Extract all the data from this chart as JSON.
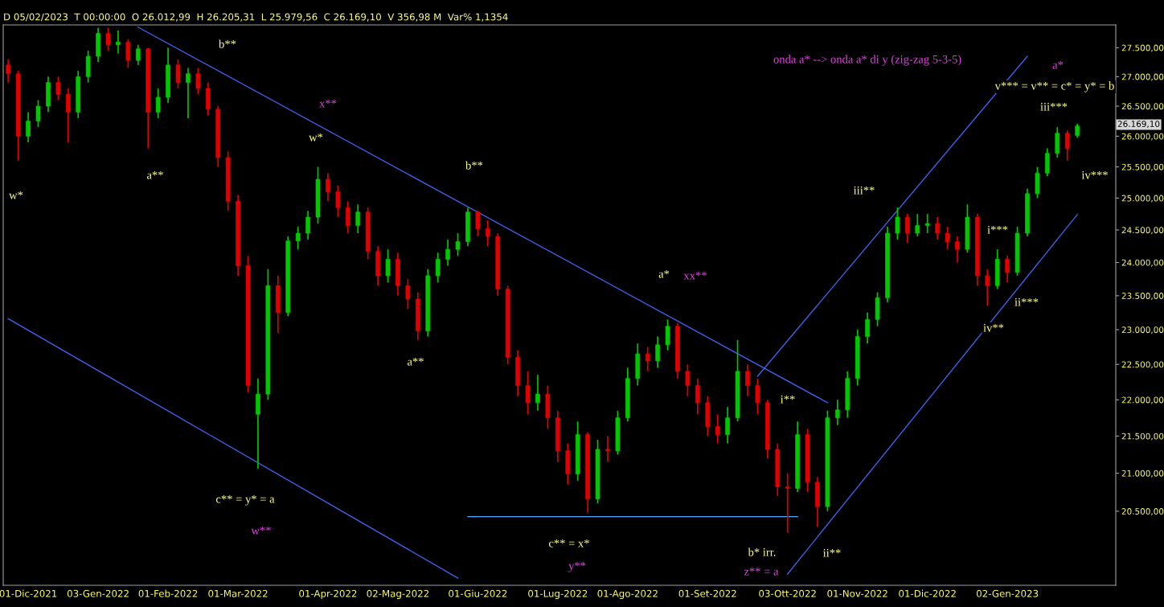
{
  "chart_data": {
    "type": "candlestick",
    "categories": [
      null,
      null,
      "01-Dic-2021",
      null,
      null,
      null,
      null,
      null,
      null,
      "03-Gen-2022",
      null,
      null,
      null,
      null,
      null,
      null,
      "01-Feb-2022",
      null,
      null,
      null,
      null,
      null,
      null,
      "01-Mar-2022",
      null,
      null,
      null,
      null,
      null,
      null,
      null,
      null,
      "01-Apr-2022",
      null,
      null,
      null,
      null,
      null,
      null,
      "02-Mag-2022",
      null,
      null,
      null,
      null,
      null,
      null,
      null,
      "01-Giu-2022",
      null,
      null,
      null,
      null,
      null,
      null,
      null,
      "01-Lug-2022",
      null,
      null,
      null,
      null,
      null,
      null,
      "01-Ago-2022",
      null,
      null,
      null,
      null,
      null,
      null,
      null,
      "01-Set-2022",
      null,
      null,
      null,
      null,
      null,
      null,
      null,
      "03-Ott-2022",
      null,
      null,
      null,
      null,
      null,
      null,
      "01-Nov-2022",
      null,
      null,
      null,
      null,
      null,
      null,
      "01-Dic-2022",
      null,
      null,
      null,
      null,
      null,
      null,
      null,
      "02-Gen-2023",
      null,
      null,
      null,
      null,
      null,
      null,
      null
    ],
    "ohlc": [
      [
        27200,
        27300,
        26900,
        27050
      ],
      [
        27050,
        27100,
        25600,
        26000
      ],
      [
        26000,
        26400,
        25900,
        26250
      ],
      [
        26250,
        26600,
        26150,
        26500
      ],
      [
        26500,
        27000,
        26400,
        26900
      ],
      [
        26900,
        27000,
        26600,
        26700
      ],
      [
        26700,
        26800,
        25900,
        26400
      ],
      [
        26400,
        27100,
        26300,
        27000
      ],
      [
        27000,
        27450,
        26900,
        27350
      ],
      [
        27350,
        27850,
        27250,
        27750
      ],
      [
        27750,
        27850,
        27450,
        27550
      ],
      [
        27550,
        27800,
        27400,
        27600
      ],
      [
        27600,
        27650,
        27150,
        27280
      ],
      [
        27280,
        27550,
        27200,
        27480
      ],
      [
        27480,
        27500,
        25800,
        26400
      ],
      [
        26400,
        26800,
        26300,
        26650
      ],
      [
        26650,
        27500,
        26550,
        27200
      ],
      [
        27200,
        27300,
        26800,
        26900
      ],
      [
        26900,
        27150,
        26300,
        27050
      ],
      [
        27050,
        27150,
        26700,
        26800
      ],
      [
        26800,
        26900,
        26350,
        26450
      ],
      [
        26450,
        26500,
        25500,
        25650
      ],
      [
        25650,
        25750,
        24800,
        24950
      ],
      [
        24950,
        25050,
        23800,
        23950
      ],
      [
        23950,
        24100,
        22100,
        22200
      ],
      [
        21800,
        22300,
        21060,
        22080
      ],
      [
        22080,
        23900,
        22000,
        23650
      ],
      [
        23650,
        23800,
        22950,
        23250
      ],
      [
        23250,
        24400,
        23200,
        24330
      ],
      [
        24330,
        24550,
        24200,
        24450
      ],
      [
        24450,
        24800,
        24350,
        24700
      ],
      [
        24700,
        25500,
        24600,
        25300
      ],
      [
        25300,
        25400,
        24950,
        25100
      ],
      [
        25100,
        25200,
        24700,
        24850
      ],
      [
        24850,
        24950,
        24450,
        24570
      ],
      [
        24570,
        24900,
        24450,
        24780
      ],
      [
        24780,
        24850,
        24050,
        24170
      ],
      [
        24170,
        24250,
        23650,
        23800
      ],
      [
        23800,
        24200,
        23700,
        24050
      ],
      [
        24050,
        24150,
        23500,
        23650
      ],
      [
        23650,
        23750,
        23300,
        23450
      ],
      [
        23450,
        23550,
        22850,
        22980
      ],
      [
        22980,
        23900,
        22900,
        23800
      ],
      [
        23800,
        24150,
        23700,
        24050
      ],
      [
        24050,
        24350,
        23950,
        24200
      ],
      [
        24200,
        24450,
        24100,
        24320
      ],
      [
        24320,
        24850,
        24250,
        24780
      ],
      [
        24780,
        24800,
        24400,
        24520
      ],
      [
        24520,
        24650,
        24250,
        24400
      ],
      [
        24400,
        24450,
        23500,
        23600
      ],
      [
        23600,
        23650,
        22500,
        22600
      ],
      [
        22600,
        22700,
        22050,
        22200
      ],
      [
        22200,
        22400,
        21800,
        21960
      ],
      [
        21960,
        22350,
        21850,
        22080
      ],
      [
        22080,
        22200,
        21600,
        21750
      ],
      [
        21750,
        21850,
        21150,
        21300
      ],
      [
        21300,
        21400,
        20850,
        20990
      ],
      [
        20990,
        21700,
        20900,
        21520
      ],
      [
        21520,
        21550,
        20480,
        20660
      ],
      [
        20660,
        21450,
        20600,
        21320
      ],
      [
        21320,
        21500,
        21150,
        21300
      ],
      [
        21300,
        21850,
        21250,
        21750
      ],
      [
        21750,
        22450,
        21700,
        22300
      ],
      [
        22300,
        22800,
        22200,
        22650
      ],
      [
        22650,
        22750,
        22400,
        22550
      ],
      [
        22550,
        22900,
        22450,
        22780
      ],
      [
        22780,
        23150,
        22700,
        23050
      ],
      [
        23050,
        23100,
        22300,
        22400
      ],
      [
        22400,
        22500,
        22050,
        22200
      ],
      [
        22200,
        22300,
        21800,
        21960
      ],
      [
        21960,
        22050,
        21500,
        21630
      ],
      [
        21630,
        21800,
        21400,
        21520
      ],
      [
        21520,
        21900,
        21400,
        21750
      ],
      [
        21750,
        22850,
        21700,
        22400
      ],
      [
        22400,
        22500,
        22050,
        22200
      ],
      [
        22200,
        22300,
        21800,
        21960
      ],
      [
        21960,
        22000,
        21200,
        21320
      ],
      [
        21320,
        21400,
        20700,
        20820
      ],
      [
        20820,
        21000,
        20220,
        20800
      ],
      [
        20800,
        21700,
        20750,
        21520
      ],
      [
        21520,
        21600,
        20750,
        20880
      ],
      [
        20880,
        20950,
        20300,
        20560
      ],
      [
        20560,
        21850,
        20500,
        21750
      ],
      [
        21750,
        22000,
        21650,
        21860
      ],
      [
        21860,
        22400,
        21750,
        22300
      ],
      [
        22300,
        23000,
        22200,
        22900
      ],
      [
        22900,
        23250,
        22800,
        23150
      ],
      [
        23150,
        23550,
        23050,
        23470
      ],
      [
        23470,
        24550,
        23400,
        24450
      ],
      [
        24450,
        24850,
        24350,
        24700
      ],
      [
        24700,
        24750,
        24300,
        24450
      ],
      [
        24450,
        24750,
        24400,
        24570
      ],
      [
        24570,
        24750,
        24450,
        24600
      ],
      [
        24600,
        24700,
        24350,
        24450
      ],
      [
        24450,
        24550,
        24200,
        24320
      ],
      [
        24320,
        24400,
        24000,
        24200
      ],
      [
        24200,
        24900,
        24150,
        24700
      ],
      [
        24700,
        24750,
        23650,
        23800
      ],
      [
        23800,
        23900,
        23350,
        23650
      ],
      [
        23650,
        24200,
        23600,
        24050
      ],
      [
        24050,
        24100,
        23700,
        23850
      ],
      [
        23850,
        24550,
        23800,
        24450
      ],
      [
        24450,
        25150,
        24400,
        25070
      ],
      [
        25070,
        25500,
        25000,
        25400
      ],
      [
        25400,
        25800,
        25350,
        25720
      ],
      [
        25720,
        26150,
        25650,
        26050
      ],
      [
        26050,
        26100,
        25600,
        25800
      ],
      [
        26012.99,
        26205.31,
        25979.56,
        26169.1
      ]
    ],
    "series": [
      {
        "type": "line",
        "color": "#3f5fe8",
        "values": [
          23160,
          null,
          null,
          null,
          null,
          null,
          null,
          null,
          null,
          null,
          null,
          null,
          null,
          null,
          null,
          null,
          null,
          null,
          null,
          null,
          null,
          null,
          null,
          null,
          null,
          null,
          null,
          null,
          null,
          null,
          null,
          null,
          null,
          null,
          null,
          null,
          null,
          null,
          null,
          null,
          null,
          null,
          null,
          null,
          null,
          19650,
          null,
          null,
          null,
          null,
          null,
          null,
          null,
          null,
          null,
          null,
          null,
          null,
          null,
          null,
          null,
          null,
          null,
          null,
          null,
          null,
          null,
          null,
          null,
          null,
          null,
          null,
          null,
          null,
          null,
          null,
          null,
          null,
          null,
          null,
          null,
          null,
          null,
          null,
          null,
          null,
          null,
          null,
          null,
          null,
          null,
          null,
          null,
          null,
          null,
          null,
          null,
          null,
          null,
          null,
          null,
          null,
          null,
          null,
          null,
          null,
          null,
          null
        ]
      },
      {
        "type": "line",
        "color": "#3f5fe8",
        "values": [
          null,
          null,
          null,
          null,
          null,
          null,
          null,
          null,
          null,
          null,
          null,
          null,
          null,
          27860,
          null,
          null,
          null,
          null,
          null,
          null,
          null,
          null,
          null,
          null,
          null,
          null,
          null,
          null,
          null,
          null,
          null,
          null,
          null,
          null,
          null,
          null,
          null,
          null,
          null,
          null,
          null,
          null,
          null,
          null,
          null,
          null,
          null,
          null,
          null,
          null,
          null,
          null,
          null,
          null,
          null,
          null,
          null,
          null,
          null,
          null,
          null,
          null,
          null,
          null,
          null,
          null,
          null,
          null,
          null,
          null,
          null,
          null,
          null,
          null,
          null,
          null,
          null,
          null,
          null,
          null,
          null,
          null,
          21960,
          null,
          null,
          null,
          null,
          null,
          null,
          null,
          null,
          null,
          null,
          null,
          null,
          null,
          null,
          null,
          null,
          null,
          null,
          null,
          null,
          null,
          null,
          null,
          null,
          null
        ]
      },
      {
        "type": "line",
        "color": "#3f5fe8",
        "values": [
          null,
          null,
          null,
          null,
          null,
          null,
          null,
          null,
          null,
          null,
          null,
          null,
          null,
          null,
          null,
          null,
          null,
          null,
          null,
          null,
          null,
          null,
          null,
          null,
          null,
          null,
          null,
          null,
          null,
          null,
          null,
          null,
          null,
          null,
          null,
          null,
          null,
          null,
          null,
          null,
          null,
          null,
          null,
          null,
          null,
          null,
          null,
          null,
          null,
          null,
          null,
          null,
          null,
          null,
          null,
          null,
          null,
          null,
          null,
          null,
          null,
          null,
          null,
          null,
          null,
          null,
          null,
          null,
          null,
          null,
          null,
          null,
          null,
          null,
          null,
          22330,
          null,
          null,
          null,
          null,
          null,
          null,
          null,
          null,
          null,
          null,
          null,
          null,
          null,
          null,
          null,
          null,
          null,
          null,
          null,
          null,
          null,
          null,
          null,
          null,
          null,
          null,
          27350,
          null,
          null,
          null,
          null,
          null
        ]
      },
      {
        "type": "line",
        "color": "#3f5fe8",
        "values": [
          null,
          null,
          null,
          null,
          null,
          null,
          null,
          null,
          null,
          null,
          null,
          null,
          null,
          null,
          null,
          null,
          null,
          null,
          null,
          null,
          null,
          null,
          null,
          null,
          null,
          null,
          null,
          null,
          null,
          null,
          null,
          null,
          null,
          null,
          null,
          null,
          null,
          null,
          null,
          null,
          null,
          null,
          null,
          null,
          null,
          null,
          null,
          null,
          null,
          null,
          null,
          null,
          null,
          null,
          null,
          null,
          null,
          null,
          null,
          null,
          null,
          null,
          null,
          null,
          null,
          null,
          null,
          null,
          null,
          null,
          null,
          null,
          null,
          null,
          null,
          null,
          null,
          null,
          19700,
          null,
          null,
          null,
          null,
          null,
          null,
          null,
          null,
          null,
          null,
          null,
          null,
          null,
          null,
          null,
          null,
          null,
          null,
          null,
          null,
          null,
          null,
          null,
          null,
          null,
          null,
          null,
          null,
          24740
        ]
      },
      {
        "type": "line",
        "color": "#4da6ff",
        "values": [
          null,
          null,
          null,
          null,
          null,
          null,
          null,
          null,
          null,
          null,
          null,
          null,
          null,
          null,
          null,
          null,
          null,
          null,
          null,
          null,
          null,
          null,
          null,
          null,
          null,
          null,
          null,
          null,
          null,
          null,
          null,
          null,
          null,
          null,
          null,
          null,
          null,
          null,
          null,
          null,
          null,
          null,
          null,
          null,
          null,
          null,
          20430,
          null,
          null,
          null,
          null,
          null,
          null,
          null,
          null,
          null,
          null,
          null,
          null,
          null,
          null,
          null,
          null,
          null,
          null,
          null,
          null,
          null,
          null,
          null,
          null,
          null,
          null,
          null,
          null,
          null,
          null,
          null,
          null,
          20430,
          null,
          null,
          null,
          null,
          null,
          null,
          null,
          null,
          null,
          null,
          null,
          null,
          null,
          null,
          null,
          null,
          null,
          null,
          null,
          null,
          null,
          null,
          null,
          null,
          null,
          null,
          null,
          null
        ]
      }
    ],
    "log": true,
    "ylim": [
      19560,
      27900
    ],
    "yticks": [
      {
        "value": 20500,
        "label": "20.500,00"
      },
      {
        "value": 21000,
        "label": "21.000,00"
      },
      {
        "value": 21500,
        "label": "21.500,00"
      },
      {
        "value": 22000,
        "label": "22.000,00"
      },
      {
        "value": 22500,
        "label": "22.500,00"
      },
      {
        "value": 23000,
        "label": "23.000,00"
      },
      {
        "value": 23500,
        "label": "23.500,00"
      },
      {
        "value": 24000,
        "label": "24.000,00"
      },
      {
        "value": 24500,
        "label": "24.500,00"
      },
      {
        "value": 25000,
        "label": "25.000,00"
      },
      {
        "value": 25500,
        "label": "25.500,00"
      },
      {
        "value": 26000,
        "label": "26.000,00"
      },
      {
        "value": 26500,
        "label": "26.500,00"
      },
      {
        "value": 27000,
        "label": "27.000,00"
      },
      {
        "value": 27500,
        "label": "27.500,00"
      }
    ],
    "grid": false,
    "annotations": [
      "D 05/02/2023  T 00:00:00  O 26.012,99  H 26.205,31  L 25.979,56  C 26.169,10  V 356,98 M  Var% 1,1354",
      "onda a* --> onda a* di y (zig-zag 5-3-5)",
      "26.169,10",
      "w*",
      "a**",
      "b**",
      "x**",
      "w*",
      "c** = y* = a",
      "w**",
      "a**",
      "b**",
      "a*",
      "xx**",
      "c** = x*",
      "y**",
      "i**",
      "b* irr.",
      "z** = a",
      "ii**",
      "iii**",
      "i***",
      "iv**",
      "ii***",
      "iv***",
      "iii***",
      "v*** = v** = c* = y* = b",
      "a*"
    ]
  }
}
